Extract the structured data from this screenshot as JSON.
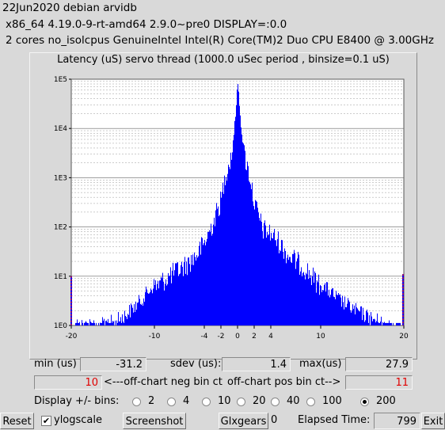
{
  "header": {
    "line1": "22Jun2020 debian arvidb",
    "line2": "x86_64  4.19.0-9-rt-amd64  2.9.0~pre0  DISPLAY=:0.0",
    "line3": "2 cores  no_isolcpus   GenuineIntel  Intel(R) Core(TM)2 Duo CPU E8400 @ 3.00GHz"
  },
  "chart_data": {
    "type": "bar",
    "title": "Latency (uS) servo thread (1000.0 uSec period , binsize=0.1 uS)",
    "yscale": "log",
    "ylim": [
      1,
      100000
    ],
    "ytick_labels": [
      "1E5",
      "1E4",
      "1E3",
      "1E2",
      "1E1",
      "1E0"
    ],
    "xlim": [
      -20,
      20
    ],
    "xtick_labels": [
      "-20",
      "-10",
      "-4",
      "-2",
      "0",
      "2",
      "4",
      "10",
      "20"
    ],
    "grid": true,
    "peak_count": 100000,
    "series": [
      {
        "color": "#0000ff",
        "x": [
          -16,
          -14,
          -12,
          -10,
          -8,
          -6,
          -5,
          -4,
          -3,
          -2,
          -1.5,
          -1,
          -0.5,
          0,
          0.5,
          1,
          1.5,
          2,
          3,
          4,
          5,
          6,
          8,
          10,
          12,
          14,
          16,
          18,
          19
        ],
        "values": [
          1.5,
          2,
          4,
          10,
          18,
          30,
          45,
          80,
          200,
          600,
          2000,
          3500,
          8000,
          100000,
          8000,
          3500,
          1600,
          500,
          150,
          120,
          80,
          45,
          25,
          10,
          5,
          3,
          2,
          1.5,
          1
        ]
      }
    ],
    "offchart_markers": [
      {
        "x": -20,
        "count": 10,
        "color": "#ff0000"
      },
      {
        "x": 20,
        "count": 11,
        "color": "#ff0000"
      }
    ]
  },
  "stats": {
    "min_label": "min (us)",
    "min_value": "-31.2",
    "sdev_label": "sdev (us):",
    "sdev_value": "1.4",
    "max_label": "max(us)",
    "max_value": "27.9",
    "neg_value": "10",
    "neg_label": "<---off-chart neg bin ct",
    "pos_label": "off-chart pos bin ct-->",
    "pos_value": "11"
  },
  "bins": {
    "label": "Display +/- bins:",
    "options": [
      "2",
      "4",
      "10",
      "20",
      "40",
      "100",
      "200"
    ],
    "selected": "200"
  },
  "footer": {
    "reset": "Reset",
    "ylogscale": "ylogscale",
    "ylogscale_checked": true,
    "screenshot": "Screenshot",
    "glxgears": "Glxgears",
    "glxgears_count": "0",
    "elapsed_label": "Elapsed Time:",
    "elapsed_value": "799",
    "exit": "Exit"
  }
}
